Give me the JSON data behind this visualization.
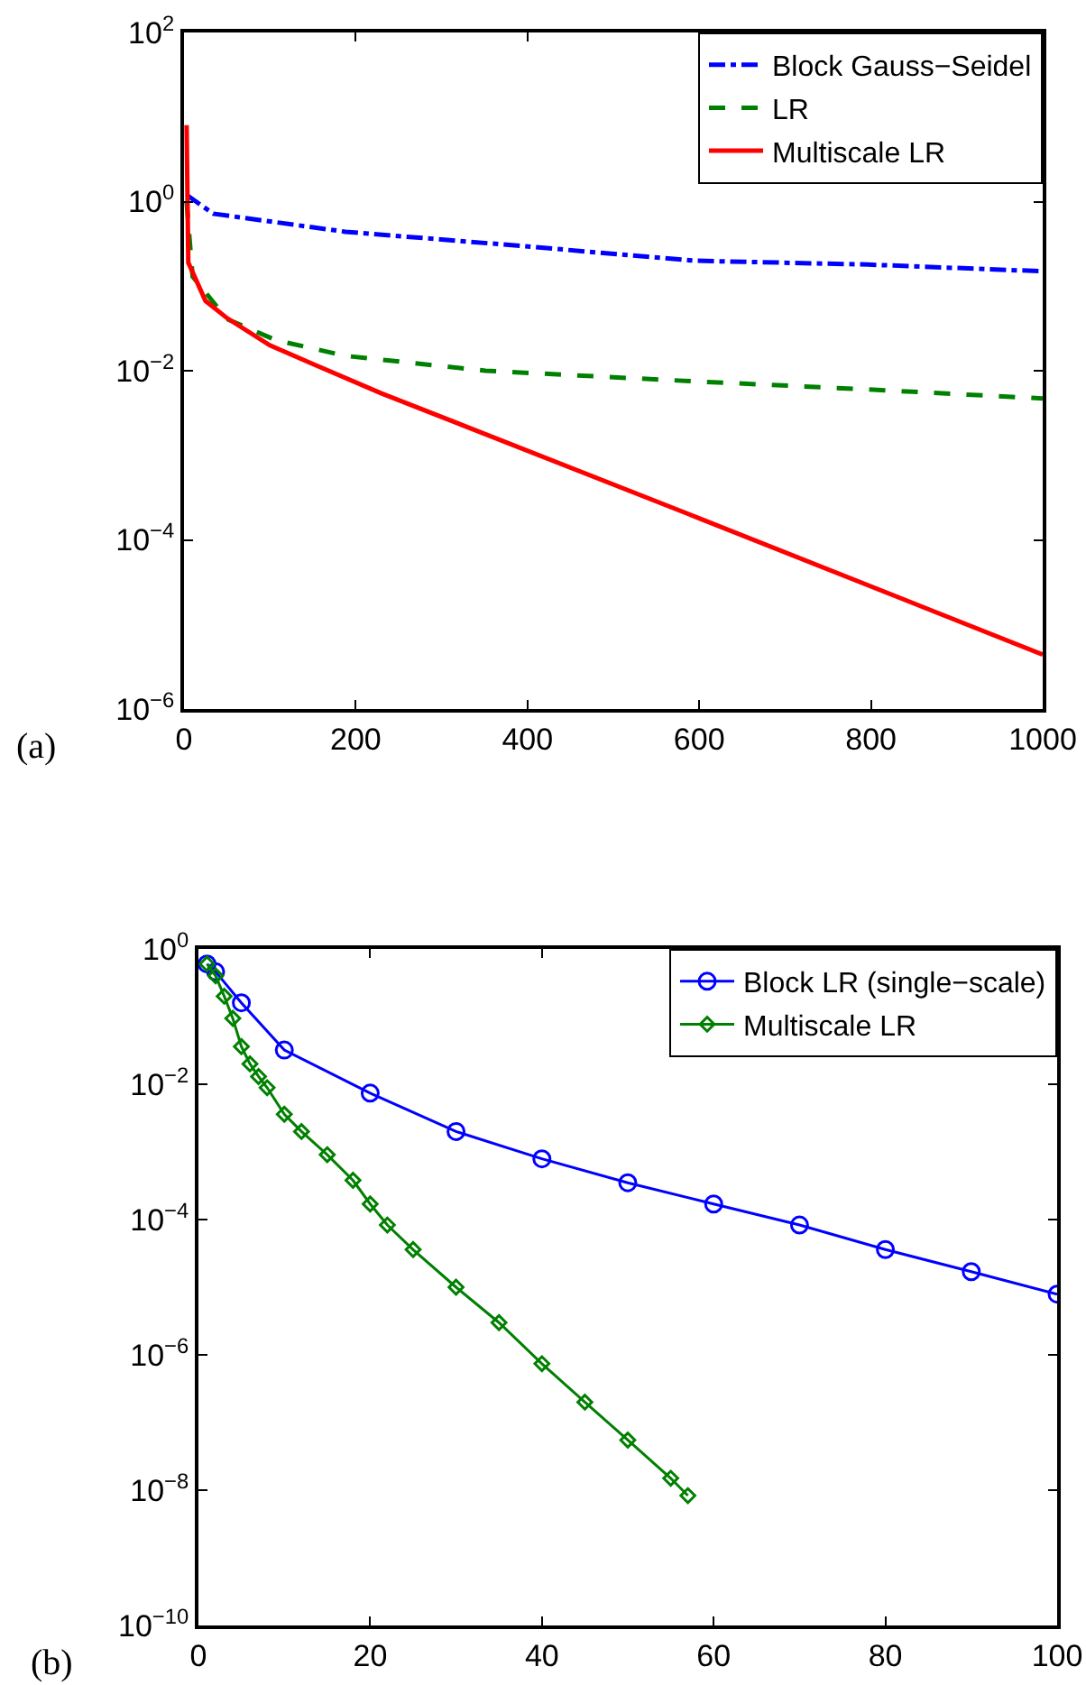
{
  "chart_data": [
    {
      "type": "line",
      "annotations": [
        "(a)"
      ],
      "xlim": [
        0,
        1000
      ],
      "xticks": [
        0,
        200,
        400,
        600,
        800,
        1000
      ],
      "log": "y",
      "ylim": [
        1e-06,
        100
      ],
      "yticks": [
        {
          "value": 1e-06,
          "label": "10$^{−6}$"
        },
        {
          "value": 0.0001,
          "label": "10$^{−4}$"
        },
        {
          "value": 0.01,
          "label": "10$^{−2}$"
        },
        {
          "value": 1,
          "label": "10$^{0}$"
        },
        {
          "value": 100,
          "label": "10$^{2}$"
        }
      ],
      "grid": false,
      "legend": "top right",
      "marker": "none",
      "series": [
        {
          "name": "Block Gauss−Seidel",
          "color": "#0000ff",
          "line_style": "dashdot",
          "x": [
            3,
            34,
            188,
            391,
            594,
            797,
            1000
          ],
          "values": [
            1.2,
            0.72,
            0.44,
            0.3,
            0.2,
            0.18,
            0.15
          ]
        },
        {
          "name": "LR",
          "color": "#008000",
          "line_style": "dashed",
          "x": [
            3,
            10,
            50,
            107,
            188,
            351,
            594,
            797,
            1000
          ],
          "values": [
            1,
            0.13,
            0.041,
            0.023,
            0.015,
            0.01,
            0.0075,
            0.006,
            0.0047
          ]
        },
        {
          "name": "Multiscale LR",
          "color": "#ff0000",
          "line_style": "solid",
          "x": [
            3,
            5,
            25,
            50,
            100,
            150,
            230,
            600,
            1000
          ],
          "values": [
            8,
            0.19,
            0.067,
            0.042,
            0.02,
            0.012,
            0.0054,
            0.00018,
            4.4e-06
          ]
        }
      ]
    },
    {
      "type": "line",
      "annotations": [
        "(b)"
      ],
      "xlim": [
        0,
        100
      ],
      "xticks": [
        0,
        20,
        40,
        60,
        80,
        100
      ],
      "log": "y",
      "ylim": [
        1e-10,
        1
      ],
      "yticks": [
        {
          "value": 1e-10,
          "label": "10$^{−10}$"
        },
        {
          "value": 1e-08,
          "label": "10$^{−8}$"
        },
        {
          "value": 1e-06,
          "label": "10$^{−6}$"
        },
        {
          "value": 0.0001,
          "label": "10$^{−4}$"
        },
        {
          "value": 0.01,
          "label": "10$^{−2}$"
        },
        {
          "value": 1,
          "label": "10$^{0}$"
        }
      ],
      "grid": false,
      "legend": "top right",
      "line_style": "solid",
      "series": [
        {
          "name": "Block LR (single−scale)",
          "color": "#0000ff",
          "marker": "circle",
          "x": [
            1,
            2,
            5,
            10,
            20,
            30,
            40,
            50,
            60,
            70,
            80,
            90,
            100
          ],
          "values": [
            0.6,
            0.46,
            0.16,
            0.032,
            0.0074,
            0.002,
            0.00079,
            0.00035,
            0.00017,
            8.3e-05,
            3.6e-05,
            1.7e-05,
            7.9e-06
          ]
        },
        {
          "name": "Multiscale LR",
          "color": "#008000",
          "marker": "diamond",
          "x": [
            1,
            2,
            3,
            4,
            5,
            6,
            7,
            8,
            10,
            12,
            15,
            18,
            20,
            22,
            25,
            30,
            35,
            40,
            45,
            50,
            55,
            57
          ],
          "values": [
            0.6,
            0.4,
            0.2,
            0.094,
            0.036,
            0.02,
            0.013,
            0.0089,
            0.0036,
            0.002,
            0.00091,
            0.00038,
            0.00017,
            8.3e-05,
            3.6e-05,
            1e-05,
            3e-06,
            7.4e-07,
            2e-07,
            5.5e-08,
            1.5e-08,
            8.3e-09
          ]
        }
      ]
    }
  ]
}
